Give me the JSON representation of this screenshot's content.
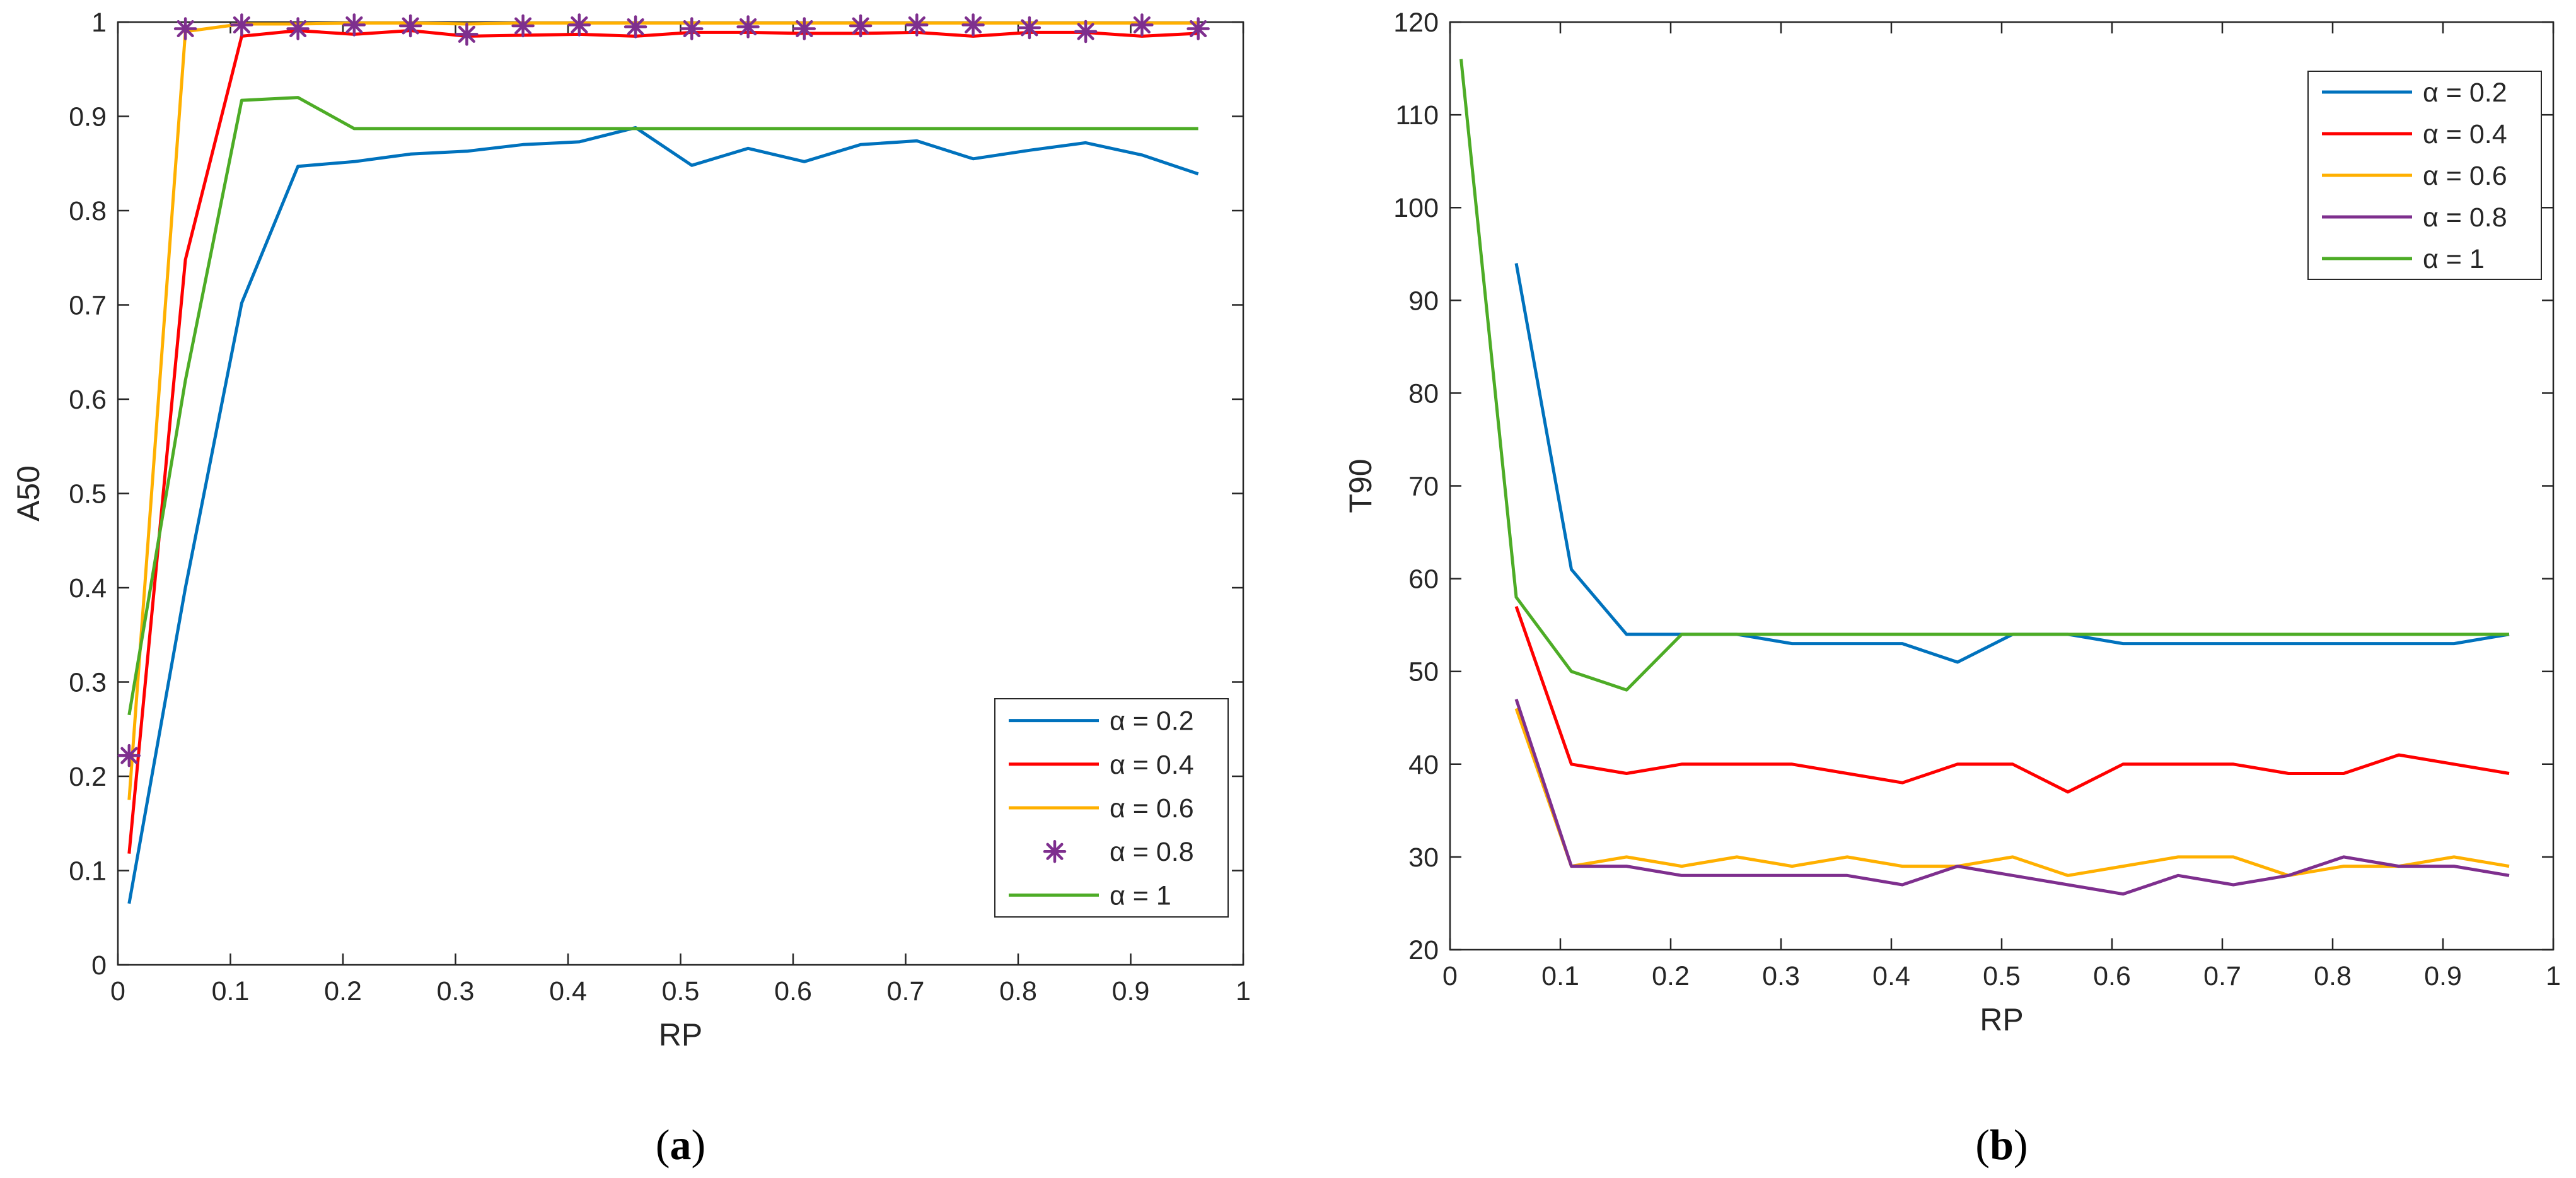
{
  "chart_data": [
    {
      "type": "line",
      "panel_label": "(a)",
      "panel_letter": "a",
      "xlabel": "RP",
      "ylabel": "A50",
      "xlim": [
        0,
        1
      ],
      "ylim": [
        0,
        1
      ],
      "xticks": [
        0,
        0.1,
        0.2,
        0.3,
        0.4,
        0.5,
        0.6,
        0.7,
        0.8,
        0.9,
        1
      ],
      "xtick_labels": [
        "0",
        "0.1",
        "0.2",
        "0.3",
        "0.4",
        "0.5",
        "0.6",
        "0.7",
        "0.8",
        "0.9",
        "1"
      ],
      "yticks": [
        0,
        0.1,
        0.2,
        0.3,
        0.4,
        0.5,
        0.6,
        0.7,
        0.8,
        0.9,
        1
      ],
      "ytick_labels": [
        "0",
        "0.1",
        "0.2",
        "0.3",
        "0.4",
        "0.5",
        "0.6",
        "0.7",
        "0.8",
        "0.9",
        "1"
      ],
      "grid": false,
      "legend_position": "bottom-right",
      "x": [
        0.01,
        0.06,
        0.11,
        0.16,
        0.21,
        0.26,
        0.31,
        0.36,
        0.41,
        0.46,
        0.51,
        0.56,
        0.61,
        0.66,
        0.71,
        0.76,
        0.81,
        0.86,
        0.91,
        0.96
      ],
      "series": [
        {
          "name": "α = 0.2",
          "color": "#0072BD",
          "style": "line",
          "values": [
            0.065,
            0.4,
            0.702,
            0.847,
            0.852,
            0.86,
            0.863,
            0.87,
            0.873,
            0.888,
            0.848,
            0.866,
            0.852,
            0.87,
            0.874,
            0.855,
            0.864,
            0.872,
            0.859,
            0.839
          ]
        },
        {
          "name": "α = 0.4",
          "color": "#FF0000",
          "style": "line",
          "values": [
            0.118,
            0.748,
            0.985,
            0.991,
            0.987,
            0.991,
            0.985,
            0.986,
            0.987,
            0.985,
            0.989,
            0.989,
            0.988,
            0.988,
            0.989,
            0.985,
            0.989,
            0.989,
            0.985,
            0.988
          ]
        },
        {
          "name": "α = 0.6",
          "color": "#FFB000",
          "style": "line",
          "values": [
            0.175,
            0.99,
            0.998,
            0.998,
            0.999,
            0.999,
            0.998,
            0.999,
            0.999,
            0.999,
            0.999,
            0.999,
            0.999,
            0.999,
            0.999,
            0.999,
            0.999,
            0.999,
            0.999,
            0.999
          ]
        },
        {
          "name": "α = 0.8",
          "color": "#7E2F8E",
          "style": "markers",
          "values": [
            0.222,
            0.993,
            0.997,
            0.993,
            0.997,
            0.996,
            0.987,
            0.996,
            0.997,
            0.995,
            0.993,
            0.995,
            0.993,
            0.996,
            0.997,
            0.997,
            0.994,
            0.99,
            0.997,
            0.993
          ]
        },
        {
          "name": "α = 1",
          "color": "#4DAC26",
          "style": "line",
          "values": [
            0.265,
            0.62,
            0.917,
            0.92,
            0.887,
            0.887,
            0.887,
            0.887,
            0.887,
            0.887,
            0.887,
            0.887,
            0.887,
            0.887,
            0.887,
            0.887,
            0.887,
            0.887,
            0.887,
            0.887
          ]
        }
      ]
    },
    {
      "type": "line",
      "panel_label": "(b)",
      "panel_letter": "b",
      "xlabel": "RP",
      "ylabel": "T90",
      "xlim": [
        0,
        1
      ],
      "ylim": [
        20,
        120
      ],
      "xticks": [
        0,
        0.1,
        0.2,
        0.3,
        0.4,
        0.5,
        0.6,
        0.7,
        0.8,
        0.9,
        1
      ],
      "xtick_labels": [
        "0",
        "0.1",
        "0.2",
        "0.3",
        "0.4",
        "0.5",
        "0.6",
        "0.7",
        "0.8",
        "0.9",
        "1"
      ],
      "yticks": [
        20,
        30,
        40,
        50,
        60,
        70,
        80,
        90,
        100,
        110,
        120
      ],
      "ytick_labels": [
        "20",
        "30",
        "40",
        "50",
        "60",
        "70",
        "80",
        "90",
        "100",
        "110",
        "120"
      ],
      "grid": false,
      "legend_position": "top-right",
      "series": [
        {
          "name": "α = 0.2",
          "color": "#0072BD",
          "style": "line",
          "x": [
            0.06,
            0.11,
            0.16,
            0.21,
            0.26,
            0.31,
            0.36,
            0.41,
            0.46,
            0.51,
            0.56,
            0.61,
            0.66,
            0.71,
            0.76,
            0.81,
            0.86,
            0.91,
            0.96
          ],
          "values": [
            94,
            61,
            54,
            54,
            54,
            53,
            53,
            53,
            51,
            54,
            54,
            53,
            53,
            53,
            53,
            53,
            53,
            53,
            54
          ]
        },
        {
          "name": "α = 0.4",
          "color": "#FF0000",
          "style": "line",
          "x": [
            0.06,
            0.11,
            0.16,
            0.21,
            0.26,
            0.31,
            0.36,
            0.41,
            0.46,
            0.51,
            0.56,
            0.61,
            0.66,
            0.71,
            0.76,
            0.81,
            0.86,
            0.91,
            0.96
          ],
          "values": [
            57,
            40,
            39,
            40,
            40,
            40,
            39,
            38,
            40,
            40,
            37,
            40,
            40,
            40,
            39,
            39,
            41,
            40,
            39
          ]
        },
        {
          "name": "α = 0.6",
          "color": "#FFB000",
          "style": "line",
          "x": [
            0.06,
            0.11,
            0.16,
            0.21,
            0.26,
            0.31,
            0.36,
            0.41,
            0.46,
            0.51,
            0.56,
            0.61,
            0.66,
            0.71,
            0.76,
            0.81,
            0.86,
            0.91,
            0.96
          ],
          "values": [
            46,
            29,
            30,
            29,
            30,
            29,
            30,
            29,
            29,
            30,
            28,
            29,
            30,
            30,
            28,
            29,
            29,
            30,
            29
          ]
        },
        {
          "name": "α = 0.8",
          "color": "#7E2F8E",
          "style": "line",
          "x": [
            0.06,
            0.11,
            0.16,
            0.21,
            0.26,
            0.31,
            0.36,
            0.41,
            0.46,
            0.51,
            0.56,
            0.61,
            0.66,
            0.71,
            0.76,
            0.81,
            0.86,
            0.91,
            0.96
          ],
          "values": [
            47,
            29,
            29,
            28,
            28,
            28,
            28,
            27,
            29,
            28,
            27,
            26,
            28,
            27,
            28,
            30,
            29,
            29,
            28
          ]
        },
        {
          "name": "α = 1",
          "color": "#4DAC26",
          "style": "line",
          "x": [
            0.01,
            0.06,
            0.11,
            0.16,
            0.21,
            0.26,
            0.31,
            0.36,
            0.41,
            0.46,
            0.51,
            0.56,
            0.61,
            0.66,
            0.71,
            0.76,
            0.81,
            0.86,
            0.91,
            0.96
          ],
          "values": [
            116,
            58,
            50,
            48,
            54,
            54,
            54,
            54,
            54,
            54,
            54,
            54,
            54,
            54,
            54,
            54,
            54,
            54,
            54,
            54
          ]
        }
      ]
    }
  ]
}
